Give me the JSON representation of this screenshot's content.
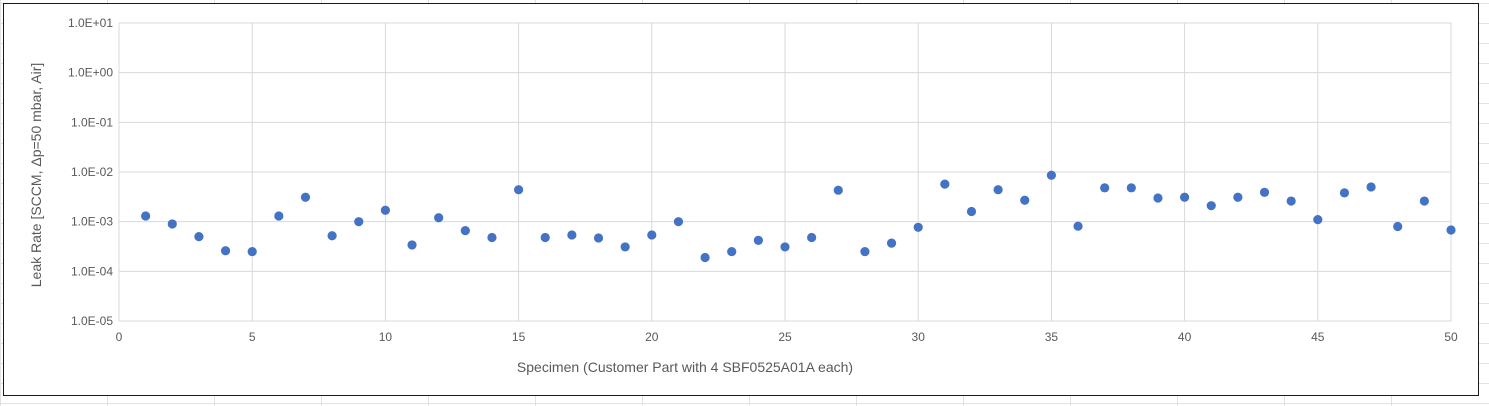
{
  "chart_data": {
    "type": "scatter",
    "title": "",
    "xlabel": "Specimen (Customer Part with 4 SBF0525A01A each)",
    "ylabel": "Leak Rate [SCCM, Δp=50 mbar, Air]",
    "x_scale": "linear",
    "y_scale": "log",
    "xlim": [
      0,
      50
    ],
    "ylim": [
      1e-05,
      10
    ],
    "x_ticks": [
      0,
      5,
      10,
      15,
      20,
      25,
      30,
      35,
      40,
      45,
      50
    ],
    "x_tick_labels": [
      "0",
      "5",
      "10",
      "15",
      "20",
      "25",
      "30",
      "35",
      "40",
      "45",
      "50"
    ],
    "y_ticks": [
      1e-05,
      0.0001,
      0.001,
      0.01,
      0.1,
      1,
      10
    ],
    "y_tick_labels": [
      "1.0E-05",
      "1.0E-04",
      "1.0E-03",
      "1.0E-02",
      "1.0E-01",
      "1.0E+00",
      "1.0E+01"
    ],
    "grid": true,
    "legend": "none",
    "marker_color": "#4472C4",
    "x": [
      1,
      2,
      3,
      4,
      5,
      6,
      7,
      8,
      9,
      10,
      11,
      12,
      13,
      14,
      15,
      16,
      17,
      18,
      19,
      20,
      21,
      22,
      23,
      24,
      25,
      26,
      27,
      28,
      29,
      30,
      31,
      32,
      33,
      34,
      35,
      36,
      37,
      38,
      39,
      40,
      41,
      42,
      43,
      44,
      45,
      46,
      47,
      48,
      49,
      50
    ],
    "y": [
      0.0013,
      0.0009,
      0.0005,
      0.00026,
      0.00025,
      0.0013,
      0.0031,
      0.00052,
      0.001,
      0.0017,
      0.00034,
      0.0012,
      0.00066,
      0.00048,
      0.0044,
      0.00048,
      0.00054,
      0.00047,
      0.00031,
      0.00054,
      0.001,
      0.00019,
      0.00025,
      0.00042,
      0.00031,
      0.00048,
      0.0043,
      0.00025,
      0.00037,
      0.00077,
      0.0057,
      0.0016,
      0.0044,
      0.0027,
      0.0086,
      0.00081,
      0.0048,
      0.0048,
      0.003,
      0.0031,
      0.0021,
      0.0031,
      0.0039,
      0.0026,
      0.0011,
      0.0038,
      0.005,
      0.0008,
      0.0026,
      0.00068
    ]
  }
}
